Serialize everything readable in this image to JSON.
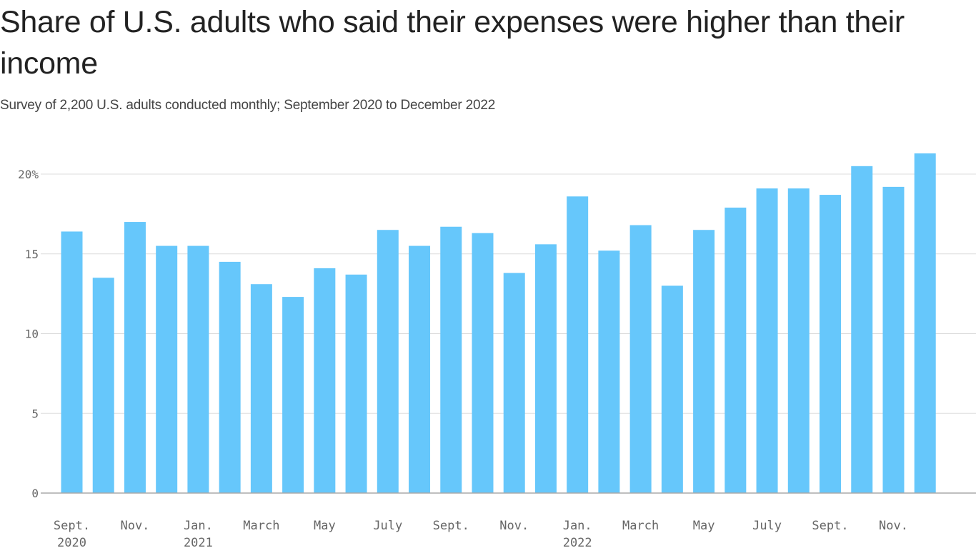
{
  "chart_data": {
    "type": "bar",
    "title": "Share of U.S. adults who said their expenses were higher than their income",
    "subtitle": "Survey of 2,200 U.S. adults conducted monthly; September 2020 to December 2022",
    "xlabel": "",
    "ylabel": "",
    "ylim": [
      0,
      21.5
    ],
    "grid": true,
    "y_ticks": [
      {
        "value": 0,
        "label": "0"
      },
      {
        "value": 5,
        "label": "5"
      },
      {
        "value": 10,
        "label": "10"
      },
      {
        "value": 15,
        "label": "15"
      },
      {
        "value": 20,
        "label": "20%"
      }
    ],
    "categories": [
      "Sept. 2020",
      "Oct. 2020",
      "Nov. 2020",
      "Dec. 2020",
      "Jan. 2021",
      "Feb. 2021",
      "March 2021",
      "April 2021",
      "May 2021",
      "June 2021",
      "July 2021",
      "Aug. 2021",
      "Sept. 2021",
      "Oct. 2021",
      "Nov. 2021",
      "Dec. 2021",
      "Jan. 2022",
      "Feb. 2022",
      "March 2022",
      "April 2022",
      "May 2022",
      "June 2022",
      "July 2022",
      "Aug. 2022",
      "Sept. 2022",
      "Oct. 2022",
      "Nov. 2022",
      "Dec. 2022"
    ],
    "values": [
      16.4,
      13.5,
      17.0,
      15.5,
      15.5,
      14.5,
      13.1,
      12.3,
      14.1,
      13.7,
      16.5,
      15.5,
      16.7,
      16.3,
      13.8,
      15.6,
      18.6,
      15.2,
      16.8,
      13.0,
      16.5,
      17.9,
      19.1,
      19.1,
      18.7,
      20.5,
      19.2,
      21.3
    ],
    "x_tick_labels": [
      {
        "category_index": 0,
        "line1": "Sept.",
        "line2": "2020"
      },
      {
        "category_index": 2,
        "line1": "Nov.",
        "line2": ""
      },
      {
        "category_index": 4,
        "line1": "Jan.",
        "line2": "2021"
      },
      {
        "category_index": 6,
        "line1": "March",
        "line2": ""
      },
      {
        "category_index": 8,
        "line1": "May",
        "line2": ""
      },
      {
        "category_index": 10,
        "line1": "July",
        "line2": ""
      },
      {
        "category_index": 12,
        "line1": "Sept.",
        "line2": ""
      },
      {
        "category_index": 14,
        "line1": "Nov.",
        "line2": ""
      },
      {
        "category_index": 16,
        "line1": "Jan.",
        "line2": "2022"
      },
      {
        "category_index": 18,
        "line1": "March",
        "line2": ""
      },
      {
        "category_index": 20,
        "line1": "May",
        "line2": ""
      },
      {
        "category_index": 22,
        "line1": "July",
        "line2": ""
      },
      {
        "category_index": 24,
        "line1": "Sept.",
        "line2": ""
      },
      {
        "category_index": 26,
        "line1": "Nov.",
        "line2": ""
      }
    ],
    "colors": {
      "bar": "#66c7fb",
      "grid": "#dddddd",
      "baseline": "#aaaaaa",
      "tick_text": "#666666"
    }
  }
}
